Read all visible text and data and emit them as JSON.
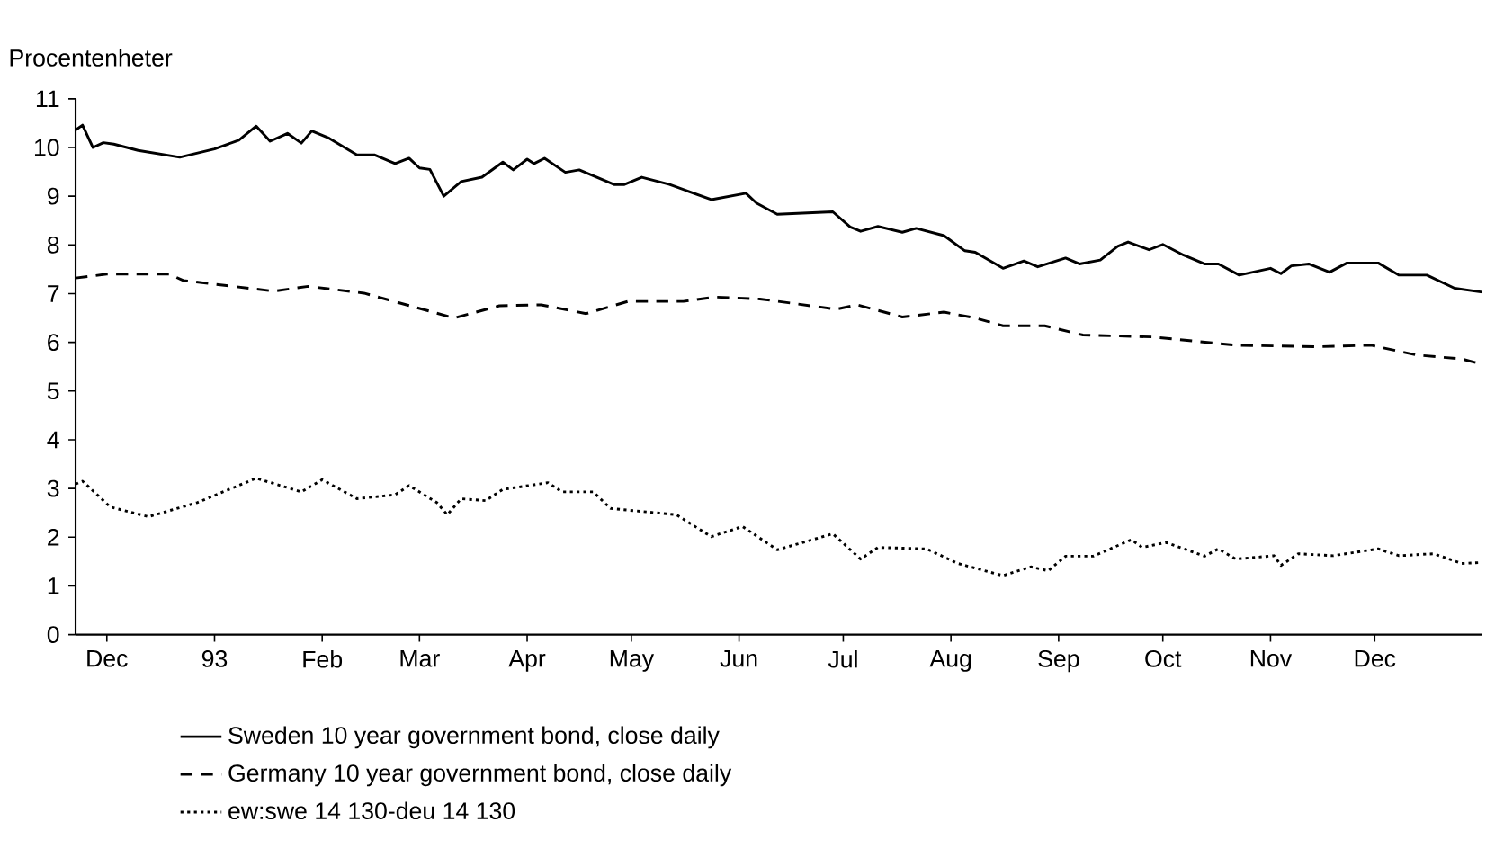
{
  "chart_data": {
    "type": "line",
    "ylabel": "Procentenheter",
    "xlim": [
      "1992-12-06",
      "1994-01-15"
    ],
    "xticks": [
      {
        "value": "1992-12-15",
        "label": "Dec"
      },
      {
        "value": "1993-01-15",
        "label": "93"
      },
      {
        "value": "1993-02-15",
        "label": "Feb"
      },
      {
        "value": "1993-03-15",
        "label": "Mar"
      },
      {
        "value": "1993-04-15",
        "label": "Apr"
      },
      {
        "value": "1993-05-15",
        "label": "May"
      },
      {
        "value": "1993-06-15",
        "label": "Jun"
      },
      {
        "value": "1993-07-15",
        "label": "Jul"
      },
      {
        "value": "1993-08-15",
        "label": "Aug"
      },
      {
        "value": "1993-09-15",
        "label": "Sep"
      },
      {
        "value": "1993-10-15",
        "label": "Oct"
      },
      {
        "value": "1993-11-15",
        "label": "Nov"
      },
      {
        "value": "1993-12-15",
        "label": "Dec"
      }
    ],
    "ylim": [
      0,
      11
    ],
    "yticks": [
      0,
      1,
      2,
      3,
      4,
      5,
      6,
      7,
      8,
      9,
      10,
      11
    ],
    "legend": "bottom left",
    "series": [
      {
        "name": "Sweden 10 year government bond, close daily",
        "color": "#000000",
        "line_style": "solid",
        "x": [
          "1992-12-06",
          "1992-12-08",
          "1992-12-11",
          "1992-12-14",
          "1992-12-17",
          "1992-12-24",
          "1993-01-05",
          "1993-01-15",
          "1993-01-22",
          "1993-01-27",
          "1993-01-31",
          "1993-02-05",
          "1993-02-09",
          "1993-02-12",
          "1993-02-17",
          "1993-02-25",
          "1993-03-02",
          "1993-03-08",
          "1993-03-12",
          "1993-03-15",
          "1993-03-18",
          "1993-03-22",
          "1993-03-27",
          "1993-04-02",
          "1993-04-08",
          "1993-04-11",
          "1993-04-15",
          "1993-04-17",
          "1993-04-20",
          "1993-04-26",
          "1993-04-30",
          "1993-05-10",
          "1993-05-13",
          "1993-05-18",
          "1993-05-26",
          "1993-06-07",
          "1993-06-17",
          "1993-06-20",
          "1993-06-26",
          "1993-07-12",
          "1993-07-17",
          "1993-07-20",
          "1993-07-25",
          "1993-08-01",
          "1993-08-05",
          "1993-08-13",
          "1993-08-19",
          "1993-08-22",
          "1993-08-30",
          "1993-09-05",
          "1993-09-09",
          "1993-09-17",
          "1993-09-21",
          "1993-09-27",
          "1993-10-02",
          "1993-10-05",
          "1993-10-11",
          "1993-10-15",
          "1993-10-21",
          "1993-10-27",
          "1993-10-31",
          "1993-11-06",
          "1993-11-15",
          "1993-11-18",
          "1993-11-21",
          "1993-11-26",
          "1993-12-02",
          "1993-12-07",
          "1993-12-16",
          "1993-12-22",
          "1993-12-30",
          "1994-01-07",
          "1994-01-15"
        ],
        "values": [
          10.36,
          10.46,
          10.0,
          10.1,
          10.07,
          9.94,
          9.8,
          9.97,
          10.15,
          10.44,
          10.13,
          10.29,
          10.09,
          10.34,
          10.19,
          9.85,
          9.85,
          9.67,
          9.78,
          9.58,
          9.55,
          9.0,
          9.3,
          9.39,
          9.7,
          9.54,
          9.76,
          9.67,
          9.78,
          9.49,
          9.54,
          9.24,
          9.24,
          9.39,
          9.24,
          8.93,
          9.06,
          8.86,
          8.63,
          8.68,
          8.37,
          8.28,
          8.38,
          8.26,
          8.34,
          8.19,
          7.88,
          7.85,
          7.52,
          7.67,
          7.55,
          7.73,
          7.61,
          7.69,
          7.97,
          8.06,
          7.9,
          8.01,
          7.79,
          7.61,
          7.61,
          7.38,
          7.52,
          7.41,
          7.57,
          7.61,
          7.44,
          7.63,
          7.63,
          7.38,
          7.38,
          7.11,
          7.03
        ]
      },
      {
        "name": "Germany 10 year government bond, close daily",
        "color": "#000000",
        "line_style": "dashed",
        "x": [
          "1992-12-06",
          "1992-12-15",
          "1993-01-02",
          "1993-01-06",
          "1993-02-01",
          "1993-02-11",
          "1993-02-27",
          "1993-03-25",
          "1993-04-07",
          "1993-04-19",
          "1993-05-02",
          "1993-05-14",
          "1993-05-30",
          "1993-06-08",
          "1993-06-21",
          "1993-07-13",
          "1993-07-19",
          "1993-08-01",
          "1993-08-13",
          "1993-08-22",
          "1993-08-30",
          "1993-09-11",
          "1993-09-22",
          "1993-10-12",
          "1993-11-05",
          "1993-11-29",
          "1993-12-14",
          "1993-12-27",
          "1994-01-09",
          "1994-01-15"
        ],
        "values": [
          7.32,
          7.4,
          7.4,
          7.27,
          7.05,
          7.15,
          7.01,
          6.5,
          6.75,
          6.77,
          6.59,
          6.84,
          6.84,
          6.93,
          6.89,
          6.68,
          6.77,
          6.52,
          6.62,
          6.5,
          6.34,
          6.34,
          6.15,
          6.11,
          5.94,
          5.91,
          5.94,
          5.74,
          5.66,
          5.55
        ]
      },
      {
        "name": "ew:swe 14 130-deu 14 130",
        "color": "#000000",
        "line_style": "dotted",
        "x": [
          "1992-12-06",
          "1992-12-08",
          "1992-12-16",
          "1992-12-27",
          "1993-01-10",
          "1993-01-27",
          "1993-02-09",
          "1993-02-15",
          "1993-02-25",
          "1993-03-08",
          "1993-03-12",
          "1993-03-20",
          "1993-03-23",
          "1993-03-27",
          "1993-04-03",
          "1993-04-08",
          "1993-04-21",
          "1993-04-25",
          "1993-05-04",
          "1993-05-09",
          "1993-05-28",
          "1993-06-07",
          "1993-06-16",
          "1993-06-26",
          "1993-07-12",
          "1993-07-20",
          "1993-07-25",
          "1993-08-08",
          "1993-08-17",
          "1993-08-30",
          "1993-09-07",
          "1993-09-12",
          "1993-09-17",
          "1993-09-25",
          "1993-10-06",
          "1993-10-09",
          "1993-10-16",
          "1993-10-27",
          "1993-10-31",
          "1993-11-05",
          "1993-11-16",
          "1993-11-18",
          "1993-11-23",
          "1993-12-03",
          "1993-12-16",
          "1993-12-22",
          "1994-01-01",
          "1994-01-09",
          "1994-01-15"
        ],
        "values": [
          3.09,
          3.15,
          2.62,
          2.42,
          2.71,
          3.21,
          2.93,
          3.18,
          2.79,
          2.87,
          3.06,
          2.71,
          2.46,
          2.79,
          2.75,
          2.98,
          3.12,
          2.93,
          2.93,
          2.59,
          2.46,
          2.01,
          2.22,
          1.74,
          2.07,
          1.55,
          1.79,
          1.76,
          1.46,
          1.21,
          1.39,
          1.31,
          1.61,
          1.61,
          1.95,
          1.79,
          1.89,
          1.61,
          1.76,
          1.55,
          1.62,
          1.42,
          1.66,
          1.62,
          1.76,
          1.62,
          1.66,
          1.46,
          1.48
        ]
      }
    ]
  }
}
